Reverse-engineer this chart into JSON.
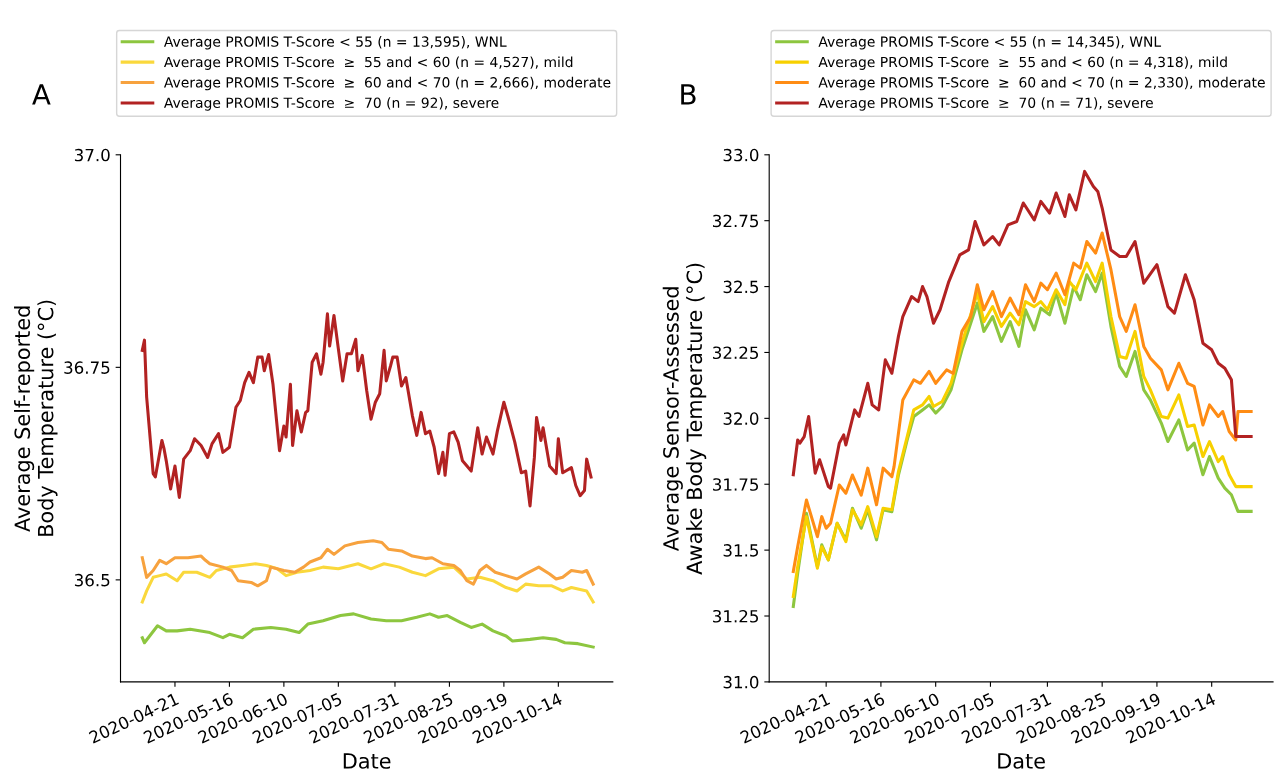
{
  "chart_data": [
    {
      "type": "line",
      "annotations": [
        "A"
      ],
      "xlabel": "Date",
      "ylabel": "Average Self-reported\nBody Temperature (°C)",
      "legend": "top",
      "grid": false,
      "line_style": "solid",
      "xlim": [
        "2020-03-27",
        "2020-11-08"
      ],
      "xticks": [
        {
          "value": "2020-04-21",
          "label": "2020-04-21"
        },
        {
          "value": "2020-05-16",
          "label": "2020-05-16"
        },
        {
          "value": "2020-06-10",
          "label": "2020-06-10"
        },
        {
          "value": "2020-07-05",
          "label": "2020-07-05"
        },
        {
          "value": "2020-07-31",
          "label": "2020-07-31"
        },
        {
          "value": "2020-08-25",
          "label": "2020-08-25"
        },
        {
          "value": "2020-09-19",
          "label": "2020-09-19"
        },
        {
          "value": "2020-10-14",
          "label": "2020-10-14"
        }
      ],
      "ylim": [
        36.38,
        37.0
      ],
      "yticks": [
        36.5,
        36.75,
        {
          "value": 37.0,
          "label": "37.0"
        }
      ],
      "series": [
        {
          "name": "Average PROMIS T-Score < 55 (n = 13,595), WNL",
          "color": "#8dc63f",
          "x": [
            "2020-04-06",
            "2020-04-07",
            "2020-04-13",
            "2020-04-17",
            "2020-04-22",
            "2020-04-28",
            "2020-05-07",
            "2020-05-13",
            "2020-05-16",
            "2020-05-22",
            "2020-05-27",
            "2020-06-04",
            "2020-06-11",
            "2020-06-17",
            "2020-06-21",
            "2020-06-28",
            "2020-07-06",
            "2020-07-12",
            "2020-07-20",
            "2020-07-27",
            "2020-08-03",
            "2020-08-10",
            "2020-08-16",
            "2020-08-20",
            "2020-08-24",
            "2020-08-30",
            "2020-09-04",
            "2020-09-09",
            "2020-09-14",
            "2020-09-20",
            "2020-09-23",
            "2020-10-01",
            "2020-10-07",
            "2020-10-13",
            "2020-10-17",
            "2020-10-23",
            "2020-10-30"
          ],
          "values": [
            36.432,
            36.426,
            36.446,
            36.44,
            36.44,
            36.442,
            36.438,
            36.432,
            36.436,
            36.432,
            36.442,
            36.444,
            36.442,
            36.438,
            36.448,
            36.452,
            36.458,
            36.46,
            36.454,
            36.452,
            36.452,
            36.456,
            36.46,
            36.456,
            36.458,
            36.45,
            36.444,
            36.448,
            36.44,
            36.434,
            36.428,
            36.43,
            36.432,
            36.43,
            36.426,
            36.425,
            36.421
          ]
        },
        {
          "name": "Average PROMIS T-Score  ≥  55 and < 60 (n = 4,527), mild",
          "color": "#fad83c",
          "x": [
            "2020-04-06",
            "2020-04-08",
            "2020-04-11",
            "2020-04-14",
            "2020-04-17",
            "2020-04-22",
            "2020-04-25",
            "2020-05-01",
            "2020-05-07",
            "2020-05-10",
            "2020-05-16",
            "2020-05-22",
            "2020-05-28",
            "2020-06-02",
            "2020-06-07",
            "2020-06-11",
            "2020-06-16",
            "2020-06-22",
            "2020-06-28",
            "2020-07-05",
            "2020-07-14",
            "2020-07-20",
            "2020-07-26",
            "2020-08-02",
            "2020-08-08",
            "2020-08-14",
            "2020-08-20",
            "2020-08-27",
            "2020-09-02",
            "2020-09-08",
            "2020-09-14",
            "2020-09-20",
            "2020-09-25",
            "2020-09-29",
            "2020-10-05",
            "2020-10-11",
            "2020-10-16",
            "2020-10-20",
            "2020-10-27",
            "2020-10-30"
          ],
          "values": [
            36.474,
            36.487,
            36.503,
            36.505,
            36.507,
            36.499,
            36.509,
            36.509,
            36.503,
            36.511,
            36.515,
            36.517,
            36.519,
            36.517,
            36.513,
            36.505,
            36.509,
            36.511,
            36.515,
            36.513,
            36.519,
            36.513,
            36.519,
            36.515,
            36.509,
            36.505,
            36.513,
            36.515,
            36.501,
            36.503,
            36.499,
            36.491,
            36.487,
            36.495,
            36.493,
            36.493,
            36.487,
            36.491,
            36.487,
            36.474
          ]
        },
        {
          "name": "Average PROMIS T-Score  ≥  60 and < 70 (n = 2,666), moderate",
          "color": "#f7a23e",
          "x": [
            "2020-04-06",
            "2020-04-08",
            "2020-04-11",
            "2020-04-14",
            "2020-04-17",
            "2020-04-21",
            "2020-04-27",
            "2020-05-03",
            "2020-05-05",
            "2020-05-07",
            "2020-05-13",
            "2020-05-17",
            "2020-05-20",
            "2020-05-26",
            "2020-05-29",
            "2020-06-02",
            "2020-06-04",
            "2020-06-10",
            "2020-06-15",
            "2020-06-19",
            "2020-06-22",
            "2020-06-27",
            "2020-06-30",
            "2020-07-03",
            "2020-07-08",
            "2020-07-14",
            "2020-07-21",
            "2020-07-25",
            "2020-07-28",
            "2020-08-03",
            "2020-08-08",
            "2020-08-14",
            "2020-08-17",
            "2020-08-22",
            "2020-08-27",
            "2020-08-30",
            "2020-09-02",
            "2020-09-05",
            "2020-09-08",
            "2020-09-11",
            "2020-09-15",
            "2020-09-20",
            "2020-09-25",
            "2020-09-29",
            "2020-10-05",
            "2020-10-10",
            "2020-10-13",
            "2020-10-16",
            "2020-10-20",
            "2020-10-25",
            "2020-10-27",
            "2020-10-30"
          ],
          "values": [
            36.526,
            36.503,
            36.511,
            36.523,
            36.519,
            36.526,
            36.526,
            36.528,
            36.523,
            36.519,
            36.515,
            36.511,
            36.499,
            36.497,
            36.493,
            36.499,
            36.515,
            36.511,
            36.509,
            36.515,
            36.521,
            36.526,
            36.536,
            36.53,
            36.54,
            36.544,
            36.546,
            36.544,
            36.536,
            36.534,
            36.528,
            36.525,
            36.526,
            36.519,
            36.517,
            36.511,
            36.499,
            36.495,
            36.511,
            36.517,
            36.509,
            36.505,
            36.501,
            36.507,
            36.515,
            36.507,
            36.501,
            36.503,
            36.511,
            36.509,
            36.511,
            36.495
          ]
        },
        {
          "name": "Average PROMIS T-Score  ≥  70 (n = 92), severe",
          "color": "#b22222",
          "x": [
            "2020-04-06",
            "2020-04-07",
            "2020-04-08",
            "2020-04-11",
            "2020-04-12",
            "2020-04-15",
            "2020-04-16",
            "2020-04-17",
            "2020-04-19",
            "2020-04-21",
            "2020-04-23",
            "2020-04-25",
            "2020-04-28",
            "2020-04-30",
            "2020-05-03",
            "2020-05-06",
            "2020-05-08",
            "2020-05-11",
            "2020-05-13",
            "2020-05-16",
            "2020-05-19",
            "2020-05-21",
            "2020-05-23",
            "2020-05-25",
            "2020-05-27",
            "2020-05-29",
            "2020-05-31",
            "2020-06-01",
            "2020-06-03",
            "2020-06-05",
            "2020-06-08",
            "2020-06-10",
            "2020-06-11",
            "2020-06-13",
            "2020-06-14",
            "2020-06-16",
            "2020-06-18",
            "2020-06-20",
            "2020-06-21",
            "2020-06-23",
            "2020-06-25",
            "2020-06-27",
            "2020-06-28",
            "2020-06-30",
            "2020-07-01",
            "2020-07-03",
            "2020-07-05",
            "2020-07-07",
            "2020-07-09",
            "2020-07-11",
            "2020-07-13",
            "2020-07-14",
            "2020-07-16",
            "2020-07-18",
            "2020-07-20",
            "2020-07-22",
            "2020-07-24",
            "2020-07-26",
            "2020-07-27",
            "2020-07-29",
            "2020-07-30",
            "2020-08-01",
            "2020-08-03",
            "2020-08-05",
            "2020-08-08",
            "2020-08-10",
            "2020-08-12",
            "2020-08-14",
            "2020-08-16",
            "2020-08-18",
            "2020-08-20",
            "2020-08-22",
            "2020-08-23",
            "2020-08-25",
            "2020-08-27",
            "2020-08-29",
            "2020-08-31",
            "2020-09-04",
            "2020-09-07",
            "2020-09-09",
            "2020-09-11",
            "2020-09-14",
            "2020-09-16",
            "2020-09-19",
            "2020-09-21",
            "2020-09-24",
            "2020-09-27",
            "2020-09-29",
            "2020-10-01",
            "2020-10-03",
            "2020-10-04",
            "2020-10-06",
            "2020-10-07",
            "2020-10-10",
            "2020-10-13",
            "2020-10-14",
            "2020-10-16",
            "2020-10-20",
            "2020-10-22",
            "2020-10-24",
            "2020-10-26",
            "2020-10-27",
            "2020-10-29"
          ],
          "values": [
            36.77,
            36.782,
            36.715,
            36.625,
            36.621,
            36.664,
            36.654,
            36.64,
            36.607,
            36.634,
            36.597,
            36.642,
            36.652,
            36.666,
            36.658,
            36.644,
            36.66,
            36.672,
            36.65,
            36.656,
            36.703,
            36.711,
            36.732,
            36.744,
            36.732,
            36.762,
            36.762,
            36.746,
            36.765,
            36.73,
            36.652,
            36.681,
            36.668,
            36.73,
            36.658,
            36.699,
            36.674,
            36.697,
            36.699,
            36.756,
            36.766,
            36.742,
            36.756,
            36.813,
            36.775,
            36.811,
            36.772,
            36.734,
            36.766,
            36.766,
            36.783,
            36.746,
            36.764,
            36.723,
            36.689,
            36.709,
            36.719,
            36.77,
            36.734,
            36.752,
            36.762,
            36.762,
            36.728,
            36.738,
            36.693,
            36.67,
            36.697,
            36.672,
            36.675,
            36.656,
            36.625,
            36.65,
            36.623,
            36.672,
            36.674,
            36.662,
            36.64,
            36.628,
            36.679,
            36.648,
            36.668,
            36.648,
            36.675,
            36.709,
            36.691,
            36.662,
            36.626,
            36.628,
            36.587,
            36.644,
            36.691,
            36.664,
            36.679,
            36.634,
            36.625,
            36.666,
            36.626,
            36.632,
            36.611,
            36.599,
            36.605,
            36.642,
            36.621
          ]
        }
      ]
    },
    {
      "type": "line",
      "annotations": [
        "B"
      ],
      "xlabel": "Date",
      "ylabel": "Average Sensor-Assessed\nAwake Body Temperature (°C)",
      "legend": "top",
      "grid": false,
      "line_style": "solid",
      "xlim": [
        "2020-03-26",
        "2020-11-11"
      ],
      "xticks": [
        {
          "value": "2020-04-21",
          "label": "2020-04-21"
        },
        {
          "value": "2020-05-16",
          "label": "2020-05-16"
        },
        {
          "value": "2020-06-10",
          "label": "2020-06-10"
        },
        {
          "value": "2020-07-05",
          "label": "2020-07-05"
        },
        {
          "value": "2020-07-31",
          "label": "2020-07-31"
        },
        {
          "value": "2020-08-25",
          "label": "2020-08-25"
        },
        {
          "value": "2020-09-19",
          "label": "2020-09-19"
        },
        {
          "value": "2020-10-14",
          "label": "2020-10-14"
        }
      ],
      "ylim": [
        31.0,
        33.0
      ],
      "yticks": [
        {
          "value": 31.0,
          "label": "31.0"
        },
        31.25,
        31.5,
        31.75,
        {
          "value": 32.0,
          "label": "32.0"
        },
        32.25,
        32.5,
        32.75,
        {
          "value": 33.0,
          "label": "33.0"
        }
      ],
      "series": [
        {
          "name": "Average PROMIS T-Score < 55 (n = 14,345), WNL",
          "color": "#8dc63f",
          "x": [
            "2020-04-06",
            "2020-04-08",
            "2020-04-12",
            "2020-04-17",
            "2020-04-19",
            "2020-04-22",
            "2020-04-26",
            "2020-04-30",
            "2020-05-03",
            "2020-05-07",
            "2020-05-10",
            "2020-05-14",
            "2020-05-17",
            "2020-05-21",
            "2020-05-24",
            "2020-05-28",
            "2020-05-31",
            "2020-06-04",
            "2020-06-07",
            "2020-06-10",
            "2020-06-13",
            "2020-06-17",
            "2020-06-22",
            "2020-06-29",
            "2020-07-02",
            "2020-07-06",
            "2020-07-10",
            "2020-07-14",
            "2020-07-18",
            "2020-07-21",
            "2020-07-25",
            "2020-07-28",
            "2020-08-01",
            "2020-08-04",
            "2020-08-08",
            "2020-08-12",
            "2020-08-15",
            "2020-08-18",
            "2020-08-22",
            "2020-08-25",
            "2020-08-29",
            "2020-09-02",
            "2020-09-05",
            "2020-09-09",
            "2020-09-13",
            "2020-09-16",
            "2020-09-21",
            "2020-09-24",
            "2020-09-29",
            "2020-10-03",
            "2020-10-06",
            "2020-10-10",
            "2020-10-13",
            "2020-10-17",
            "2020-10-20",
            "2020-10-23",
            "2020-10-26",
            "2020-11-01"
          ],
          "values": [
            31.286,
            31.412,
            31.64,
            31.437,
            31.52,
            31.463,
            31.602,
            31.539,
            31.659,
            31.583,
            31.653,
            31.539,
            31.653,
            31.646,
            31.785,
            31.918,
            32.007,
            32.032,
            32.051,
            32.02,
            32.045,
            32.108,
            32.26,
            32.437,
            32.33,
            32.386,
            32.292,
            32.367,
            32.273,
            32.412,
            32.336,
            32.418,
            32.393,
            32.475,
            32.361,
            32.5,
            32.45,
            32.545,
            32.481,
            32.551,
            32.349,
            32.197,
            32.159,
            32.254,
            32.108,
            32.07,
            31.982,
            31.912,
            31.994,
            31.88,
            31.906,
            31.786,
            31.855,
            31.773,
            31.735,
            31.71,
            31.647,
            31.647
          ]
        },
        {
          "name": "Average PROMIS T-Score  ≥  55 and < 60 (n = 4,318), mild",
          "color": "#f7d000",
          "x": [
            "2020-04-06",
            "2020-04-08",
            "2020-04-12",
            "2020-04-17",
            "2020-04-19",
            "2020-04-22",
            "2020-04-26",
            "2020-04-30",
            "2020-05-03",
            "2020-05-07",
            "2020-05-10",
            "2020-05-14",
            "2020-05-17",
            "2020-05-21",
            "2020-05-24",
            "2020-05-28",
            "2020-05-31",
            "2020-06-04",
            "2020-06-07",
            "2020-06-09",
            "2020-06-13",
            "2020-06-17",
            "2020-06-22",
            "2020-06-29",
            "2020-07-02",
            "2020-07-06",
            "2020-07-10",
            "2020-07-14",
            "2020-07-18",
            "2020-07-21",
            "2020-07-25",
            "2020-07-28",
            "2020-07-31",
            "2020-08-04",
            "2020-08-08",
            "2020-08-10",
            "2020-08-13",
            "2020-08-18",
            "2020-08-22",
            "2020-08-25",
            "2020-08-29",
            "2020-09-02",
            "2020-09-05",
            "2020-09-09",
            "2020-09-13",
            "2020-09-16",
            "2020-09-21",
            "2020-09-24",
            "2020-09-29",
            "2020-10-03",
            "2020-10-06",
            "2020-10-10",
            "2020-10-13",
            "2020-10-17",
            "2020-10-19",
            "2020-10-22",
            "2020-10-25",
            "2020-11-01"
          ],
          "values": [
            31.324,
            31.437,
            31.627,
            31.431,
            31.513,
            31.463,
            31.602,
            31.532,
            31.653,
            31.596,
            31.665,
            31.551,
            31.659,
            31.653,
            31.798,
            31.931,
            32.032,
            32.051,
            32.083,
            32.045,
            32.064,
            32.133,
            32.285,
            32.475,
            32.367,
            32.424,
            32.349,
            32.399,
            32.355,
            32.443,
            32.424,
            32.443,
            32.412,
            32.488,
            32.431,
            32.519,
            32.488,
            32.589,
            32.519,
            32.589,
            32.386,
            32.235,
            32.228,
            32.33,
            32.159,
            32.108,
            32.007,
            32.001,
            32.089,
            31.969,
            31.975,
            31.855,
            31.912,
            31.836,
            31.855,
            31.786,
            31.741,
            31.741
          ]
        },
        {
          "name": "Average PROMIS T-Score  ≥  60 and < 70 (n = 2,330), moderate",
          "color": "#ff8c14",
          "x": [
            "2020-04-06",
            "2020-04-08",
            "2020-04-12",
            "2020-04-17",
            "2020-04-19",
            "2020-04-21",
            "2020-04-23",
            "2020-04-27",
            "2020-04-30",
            "2020-05-03",
            "2020-05-07",
            "2020-05-10",
            "2020-05-14",
            "2020-05-17",
            "2020-05-21",
            "2020-05-22",
            "2020-05-26",
            "2020-05-31",
            "2020-06-03",
            "2020-06-07",
            "2020-06-10",
            "2020-06-15",
            "2020-06-18",
            "2020-06-22",
            "2020-06-26",
            "2020-06-29",
            "2020-07-02",
            "2020-07-06",
            "2020-07-10",
            "2020-07-14",
            "2020-07-18",
            "2020-07-21",
            "2020-07-25",
            "2020-07-28",
            "2020-07-31",
            "2020-08-04",
            "2020-08-08",
            "2020-08-12",
            "2020-08-15",
            "2020-08-18",
            "2020-08-22",
            "2020-08-25",
            "2020-08-29",
            "2020-09-02",
            "2020-09-05",
            "2020-09-09",
            "2020-09-13",
            "2020-09-16",
            "2020-09-21",
            "2020-09-24",
            "2020-09-29",
            "2020-10-03",
            "2020-10-06",
            "2020-10-10",
            "2020-10-13",
            "2020-10-17",
            "2020-10-19",
            "2020-10-22",
            "2020-10-25",
            "2020-10-26",
            "2020-11-01"
          ],
          "values": [
            31.419,
            31.513,
            31.69,
            31.551,
            31.627,
            31.583,
            31.602,
            31.747,
            31.716,
            31.785,
            31.709,
            31.811,
            31.672,
            31.811,
            31.779,
            31.817,
            32.07,
            32.146,
            32.133,
            32.178,
            32.133,
            32.184,
            32.171,
            32.33,
            32.386,
            32.507,
            32.412,
            32.481,
            32.386,
            32.456,
            32.393,
            32.507,
            32.443,
            32.513,
            32.488,
            32.551,
            32.469,
            32.589,
            32.57,
            32.671,
            32.627,
            32.703,
            32.564,
            32.386,
            32.33,
            32.431,
            32.273,
            32.228,
            32.184,
            32.108,
            32.209,
            32.133,
            32.121,
            31.975,
            32.051,
            32.007,
            32.026,
            31.95,
            31.918,
            32.026,
            32.026
          ]
        },
        {
          "name": "Average PROMIS T-Score  ≥  70 (n = 71), severe",
          "color": "#b22222",
          "x": [
            "2020-04-06",
            "2020-04-08",
            "2020-04-09",
            "2020-04-11",
            "2020-04-13",
            "2020-04-16",
            "2020-04-18",
            "2020-04-22",
            "2020-04-23",
            "2020-04-27",
            "2020-04-29",
            "2020-04-30",
            "2020-05-04",
            "2020-05-06",
            "2020-05-10",
            "2020-05-12",
            "2020-05-15",
            "2020-05-18",
            "2020-05-21",
            "2020-05-24",
            "2020-05-26",
            "2020-05-30",
            "2020-06-02",
            "2020-06-04",
            "2020-06-06",
            "2020-06-09",
            "2020-06-12",
            "2020-06-16",
            "2020-06-21",
            "2020-06-25",
            "2020-06-28",
            "2020-07-02",
            "2020-07-06",
            "2020-07-09",
            "2020-07-13",
            "2020-07-17",
            "2020-07-20",
            "2020-07-25",
            "2020-07-28",
            "2020-08-01",
            "2020-08-04",
            "2020-08-08",
            "2020-08-10",
            "2020-08-13",
            "2020-08-17",
            "2020-08-21",
            "2020-08-23",
            "2020-08-25",
            "2020-08-29",
            "2020-09-02",
            "2020-09-05",
            "2020-09-09",
            "2020-09-13",
            "2020-09-19",
            "2020-09-24",
            "2020-09-27",
            "2020-10-02",
            "2020-10-06",
            "2020-10-10",
            "2020-10-14",
            "2020-10-17",
            "2020-10-20",
            "2020-10-23",
            "2020-10-25",
            "2020-11-01"
          ],
          "values": [
            31.786,
            31.918,
            31.906,
            31.931,
            32.007,
            31.792,
            31.843,
            31.741,
            31.735,
            31.906,
            31.937,
            31.899,
            32.032,
            32.007,
            32.133,
            32.051,
            32.032,
            32.222,
            32.171,
            32.311,
            32.386,
            32.462,
            32.443,
            32.5,
            32.462,
            32.361,
            32.412,
            32.519,
            32.62,
            32.639,
            32.747,
            32.658,
            32.69,
            32.658,
            32.734,
            32.747,
            32.817,
            32.753,
            32.823,
            32.779,
            32.855,
            32.766,
            32.848,
            32.791,
            32.937,
            32.88,
            32.861,
            32.798,
            32.639,
            32.614,
            32.614,
            32.671,
            32.513,
            32.583,
            32.424,
            32.399,
            32.545,
            32.45,
            32.285,
            32.26,
            32.209,
            32.19,
            32.146,
            31.931,
            31.931
          ]
        }
      ]
    }
  ]
}
